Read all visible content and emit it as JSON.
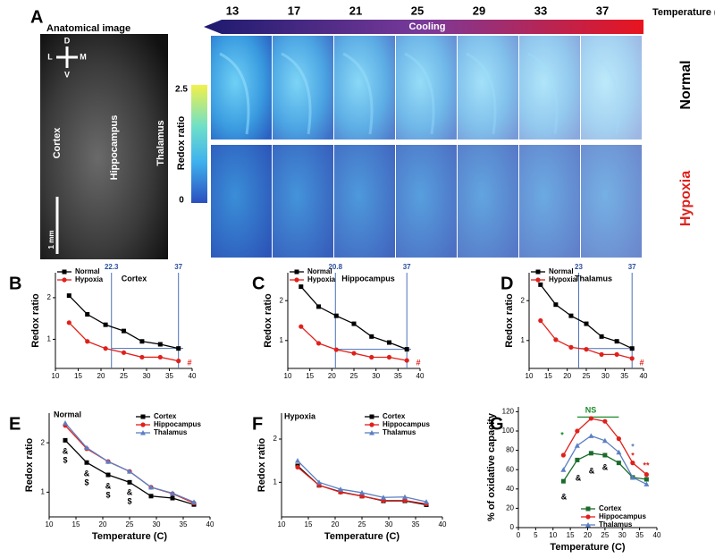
{
  "panel_a": {
    "label": "A",
    "image_title": "Anatomical image",
    "orientation": [
      "D",
      "L",
      "M",
      "V"
    ],
    "regions": [
      "Cortex",
      "Hippocampus",
      "Thalamus"
    ],
    "scale": "1 mm",
    "colorbar": {
      "title": "Redox ratio",
      "max": 2.5,
      "min": 0
    },
    "temperatures": [
      13,
      17,
      21,
      25,
      29,
      33,
      37
    ],
    "temperature_label": "Temperature (C)",
    "arrow_label": "Cooling",
    "rows": [
      "Normal",
      "Hypoxia"
    ]
  },
  "chart_data": [
    {
      "type": "line",
      "panel": "B",
      "y_label": "Redox ratio",
      "x": [
        13,
        17,
        21,
        25,
        29,
        33,
        37
      ],
      "xlim": [
        10,
        40
      ],
      "xticks": [
        10,
        15,
        20,
        25,
        30,
        35,
        40
      ],
      "ylim": [
        0.3,
        2.6
      ],
      "yticks": [
        1,
        2
      ],
      "series": [
        {
          "name": "Normal",
          "color": "#000000",
          "values": [
            2.05,
            1.6,
            1.35,
            1.2,
            0.95,
            0.88,
            0.78
          ]
        },
        {
          "name": "Hypoxia",
          "color": "#e0201b",
          "values": [
            1.4,
            0.95,
            0.78,
            0.68,
            0.57,
            0.57,
            0.48
          ]
        }
      ],
      "vlines": [
        22.3,
        37
      ],
      "hline": 0.78,
      "annotations": [
        "Cortex",
        "#"
      ]
    },
    {
      "type": "line",
      "panel": "C",
      "y_label": "Redox ratio",
      "x": [
        13,
        17,
        21,
        25,
        29,
        33,
        37
      ],
      "xlim": [
        10,
        40
      ],
      "xticks": [
        10,
        15,
        20,
        25,
        30,
        35,
        40
      ],
      "ylim": [
        0.3,
        2.7
      ],
      "yticks": [
        1,
        2
      ],
      "series": [
        {
          "name": "Normal",
          "color": "#000000",
          "values": [
            2.35,
            1.85,
            1.62,
            1.42,
            1.1,
            0.95,
            0.78
          ]
        },
        {
          "name": "Hypoxia",
          "color": "#e0201b",
          "values": [
            1.35,
            0.93,
            0.77,
            0.68,
            0.58,
            0.58,
            0.5
          ]
        }
      ],
      "vlines": [
        20.8,
        37
      ],
      "hline": 0.78,
      "annotations": [
        "Hippocampus",
        "#"
      ]
    },
    {
      "type": "line",
      "panel": "D",
      "y_label": "Redox ratio",
      "x": [
        13,
        17,
        21,
        25,
        29,
        33,
        37
      ],
      "xlim": [
        10,
        40
      ],
      "xticks": [
        10,
        15,
        20,
        25,
        30,
        35,
        40
      ],
      "ylim": [
        0.3,
        2.7
      ],
      "yticks": [
        1,
        2
      ],
      "series": [
        {
          "name": "Normal",
          "color": "#000000",
          "values": [
            2.4,
            1.9,
            1.62,
            1.42,
            1.1,
            0.98,
            0.8
          ]
        },
        {
          "name": "Hypoxia",
          "color": "#e0201b",
          "values": [
            1.5,
            1.02,
            0.83,
            0.78,
            0.65,
            0.65,
            0.55
          ]
        }
      ],
      "vlines": [
        23,
        37
      ],
      "hline": 0.8,
      "annotations": [
        "Thalamus",
        "#"
      ]
    },
    {
      "type": "line",
      "panel": "E",
      "x_label": "Temperature (C)",
      "y_label": "Redox ratio",
      "x": [
        13,
        17,
        21,
        25,
        29,
        33,
        37
      ],
      "xlim": [
        10,
        40
      ],
      "xticks": [
        10,
        15,
        20,
        25,
        30,
        35,
        40
      ],
      "ylim": [
        0.5,
        2.6
      ],
      "yticks": [
        1,
        2
      ],
      "series": [
        {
          "name": "Cortex",
          "color": "#000000",
          "values": [
            2.05,
            1.6,
            1.35,
            1.2,
            0.92,
            0.88,
            0.75
          ]
        },
        {
          "name": "Hippocampus",
          "color": "#e0201b",
          "values": [
            2.35,
            1.88,
            1.62,
            1.42,
            1.1,
            0.97,
            0.78
          ]
        },
        {
          "name": "Thalamus",
          "color": "#5b7fc4",
          "values": [
            2.4,
            1.9,
            1.62,
            1.42,
            1.1,
            0.98,
            0.8
          ]
        }
      ],
      "annotations": [
        "Normal",
        "&",
        "$",
        "&",
        "$",
        "&",
        "$",
        "&",
        "$"
      ]
    },
    {
      "type": "line",
      "panel": "F",
      "x_label": "Temperature (C)",
      "y_label": "Redox ratio",
      "x": [
        13,
        17,
        21,
        25,
        29,
        33,
        37
      ],
      "xlim": [
        10,
        40
      ],
      "xticks": [
        10,
        15,
        20,
        25,
        30,
        35,
        40
      ],
      "ylim": [
        0.2,
        2.6
      ],
      "yticks": [
        1,
        2
      ],
      "series": [
        {
          "name": "Cortex",
          "color": "#000000",
          "values": [
            1.38,
            0.93,
            0.78,
            0.68,
            0.57,
            0.57,
            0.48
          ]
        },
        {
          "name": "Hippocampus",
          "color": "#e0201b",
          "values": [
            1.35,
            0.93,
            0.77,
            0.68,
            0.58,
            0.58,
            0.5
          ]
        },
        {
          "name": "Thalamus",
          "color": "#5b7fc4",
          "values": [
            1.5,
            1.0,
            0.84,
            0.76,
            0.65,
            0.66,
            0.55
          ]
        }
      ],
      "annotations": [
        "Hypoxia"
      ]
    },
    {
      "type": "line",
      "panel": "G",
      "x_label": "Temperature (C)",
      "y_label": "% of oxidative capacity",
      "x": [
        13,
        17,
        21,
        25,
        29,
        33,
        37
      ],
      "xlim": [
        0,
        40
      ],
      "xticks": [
        0,
        5,
        10,
        15,
        20,
        25,
        30,
        35,
        40
      ],
      "ylim": [
        0,
        125
      ],
      "yticks": [
        0,
        20,
        40,
        60,
        80,
        100,
        120
      ],
      "series": [
        {
          "name": "Cortex",
          "color": "#1a6b2a",
          "values": [
            48,
            70,
            77,
            75,
            67,
            52,
            50
          ]
        },
        {
          "name": "Hippocampus",
          "color": "#e0201b",
          "values": [
            75,
            100,
            113,
            110,
            92,
            67,
            55
          ]
        },
        {
          "name": "Thalamus",
          "color": "#5b7fc4",
          "values": [
            60,
            85,
            95,
            90,
            78,
            52,
            45
          ]
        }
      ],
      "annotations": [
        "NS",
        "*",
        "&",
        "&",
        "&",
        "&",
        "*",
        "*",
        "**"
      ]
    }
  ]
}
